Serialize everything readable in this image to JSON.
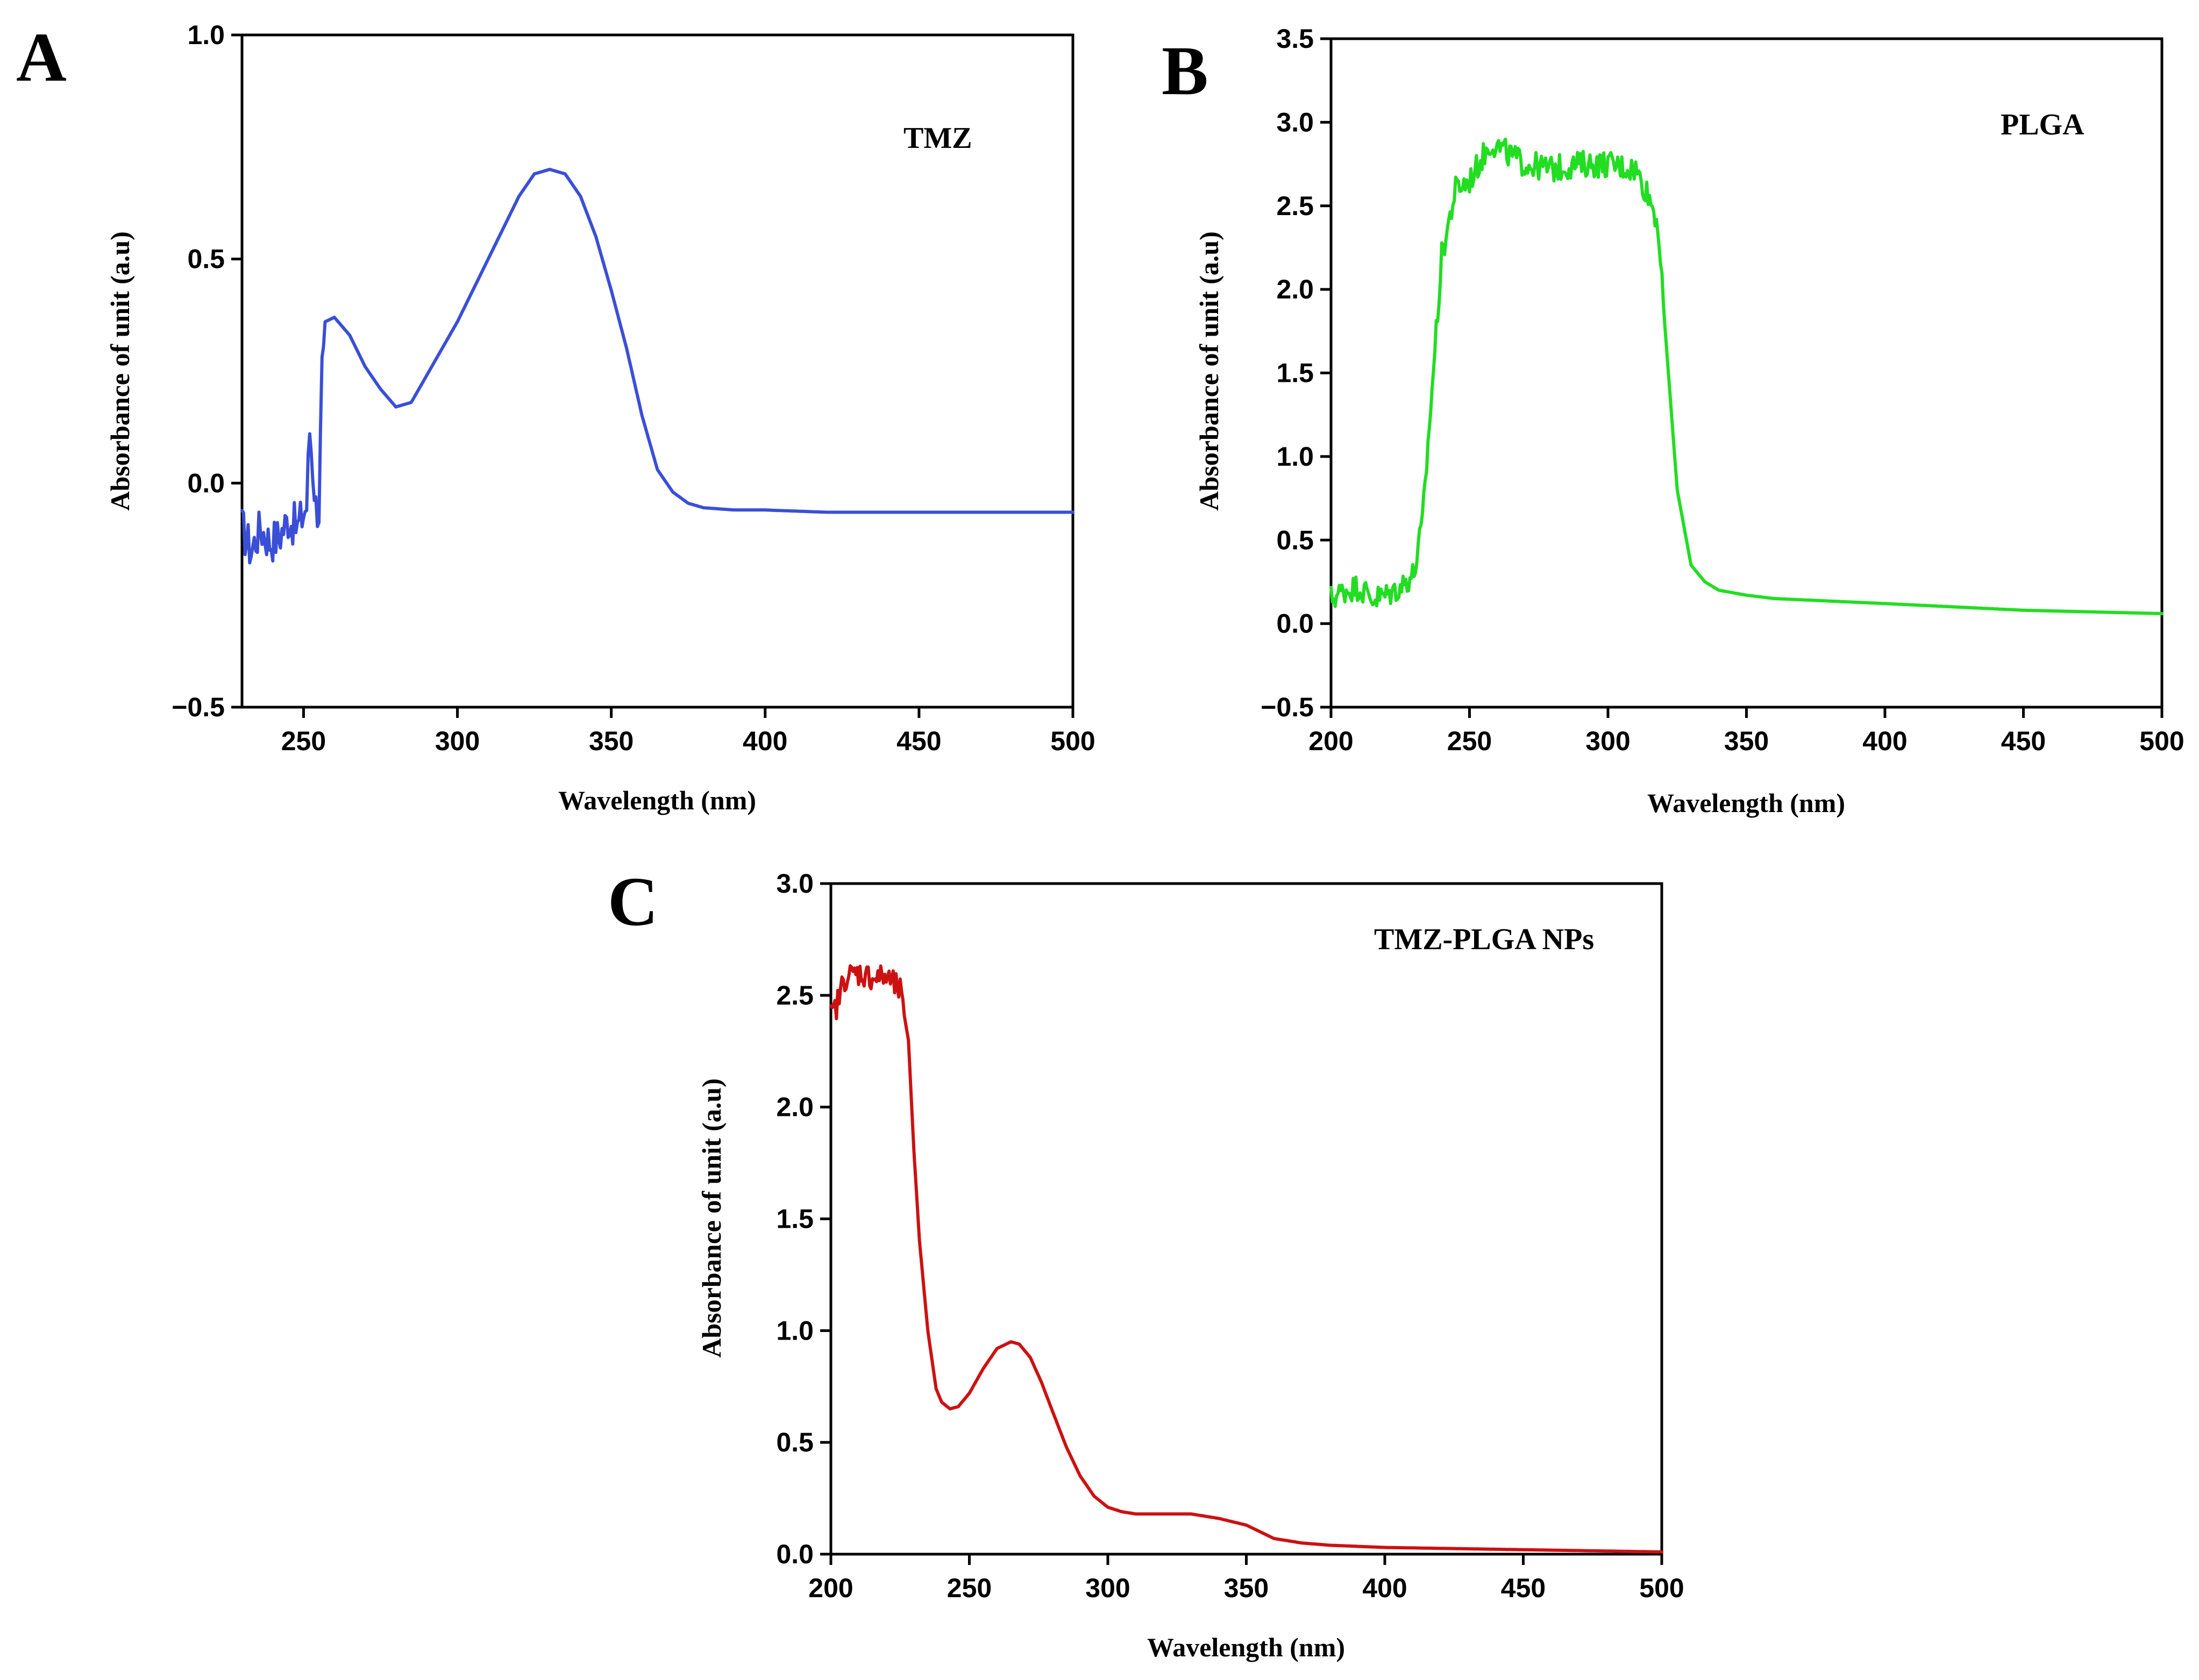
{
  "chart_data": [
    {
      "panel": "A",
      "type": "line",
      "series_name": "TMZ",
      "color": "#3a4fd6",
      "xlabel": "Wavelength (nm)",
      "ylabel": "Absorbance of unit (a.u)",
      "xlim": [
        230,
        500
      ],
      "ylim": [
        -0.5,
        1.0
      ],
      "xticks": [
        250,
        300,
        350,
        400,
        450,
        500
      ],
      "xtick_labels": [
        "250",
        "300",
        "350",
        "400",
        "450",
        "500"
      ],
      "yticks": [
        -0.5,
        0.0,
        0.5,
        1.0
      ],
      "ytick_labels": [
        "−0.5",
        "0.0",
        "0.5",
        "1.0"
      ],
      "noise_range": [
        230,
        256
      ],
      "noise_amplitude": 0.05,
      "x": [
        230,
        233,
        236,
        239,
        242,
        245,
        248,
        251,
        252,
        254,
        255,
        256,
        257,
        260,
        265,
        270,
        275,
        280,
        285,
        290,
        300,
        310,
        320,
        325,
        330,
        335,
        340,
        345,
        350,
        355,
        360,
        365,
        370,
        375,
        380,
        390,
        400,
        420,
        450,
        500
      ],
      "values": [
        -0.1,
        -0.15,
        -0.1,
        -0.13,
        -0.12,
        -0.08,
        -0.1,
        -0.05,
        0.12,
        -0.05,
        -0.06,
        0.25,
        0.36,
        0.37,
        0.33,
        0.26,
        0.21,
        0.17,
        0.18,
        0.24,
        0.36,
        0.5,
        0.64,
        0.69,
        0.7,
        0.69,
        0.64,
        0.55,
        0.43,
        0.3,
        0.15,
        0.03,
        -0.02,
        -0.045,
        -0.055,
        -0.06,
        -0.06,
        -0.065,
        -0.065,
        -0.065
      ]
    },
    {
      "panel": "B",
      "type": "line",
      "series_name": "PLGA",
      "color": "#22dd22",
      "xlabel": "Wavelength (nm)",
      "ylabel": "Absorbance of unit (a.u)",
      "xlim": [
        200,
        500
      ],
      "ylim": [
        -0.5,
        3.5
      ],
      "xticks": [
        200,
        250,
        300,
        350,
        400,
        450,
        500
      ],
      "xtick_labels": [
        "200",
        "250",
        "300",
        "350",
        "400",
        "450",
        "500"
      ],
      "yticks": [
        -0.5,
        0.0,
        0.5,
        1.0,
        1.5,
        2.0,
        2.5,
        3.0,
        3.5
      ],
      "ytick_labels": [
        "−0.5",
        "0.0",
        "0.5",
        "1.0",
        "1.5",
        "2.0",
        "2.5",
        "3.0",
        "3.5"
      ],
      "noise_range": [
        200,
        320
      ],
      "noise_amplitude": 0.08,
      "x": [
        200,
        205,
        210,
        215,
        220,
        225,
        230,
        233,
        236,
        240,
        245,
        250,
        255,
        258,
        265,
        270,
        280,
        290,
        300,
        310,
        315,
        318,
        320,
        325,
        330,
        335,
        340,
        350,
        360,
        400,
        450,
        500
      ],
      "values": [
        0.15,
        0.2,
        0.22,
        0.15,
        0.17,
        0.22,
        0.3,
        0.6,
        1.3,
        2.2,
        2.6,
        2.65,
        2.8,
        2.88,
        2.8,
        2.75,
        2.72,
        2.75,
        2.75,
        2.72,
        2.55,
        2.4,
        1.9,
        0.8,
        0.35,
        0.25,
        0.2,
        0.17,
        0.15,
        0.12,
        0.08,
        0.06
      ]
    },
    {
      "panel": "C",
      "type": "line",
      "series_name": "TMZ-PLGA NPs",
      "color": "#cc1111",
      "xlabel": "Wavelength (nm)",
      "ylabel": "Absorbance of unit (a.u)",
      "xlim": [
        200,
        500
      ],
      "ylim": [
        0.0,
        3.0
      ],
      "xticks": [
        200,
        250,
        300,
        350,
        400,
        450,
        500
      ],
      "xtick_labels": [
        "200",
        "250",
        "300",
        "350",
        "400",
        "450",
        "500"
      ],
      "yticks": [
        0.0,
        0.5,
        1.0,
        1.5,
        2.0,
        2.5,
        3.0
      ],
      "ytick_labels": [
        "0.0",
        "0.5",
        "1.0",
        "1.5",
        "2.0",
        "2.5",
        "3.0"
      ],
      "noise_range": [
        200,
        226
      ],
      "noise_amplitude": 0.06,
      "x": [
        200,
        202,
        205,
        210,
        215,
        220,
        225,
        228,
        230,
        232,
        235,
        238,
        240,
        243,
        246,
        250,
        255,
        260,
        265,
        268,
        272,
        276,
        280,
        285,
        290,
        295,
        300,
        305,
        310,
        320,
        330,
        340,
        350,
        355,
        360,
        370,
        380,
        400,
        450,
        500
      ],
      "values": [
        2.4,
        2.45,
        2.58,
        2.6,
        2.58,
        2.58,
        2.52,
        2.3,
        1.8,
        1.4,
        1.0,
        0.74,
        0.68,
        0.65,
        0.66,
        0.72,
        0.83,
        0.92,
        0.95,
        0.94,
        0.88,
        0.77,
        0.64,
        0.48,
        0.35,
        0.26,
        0.21,
        0.19,
        0.18,
        0.18,
        0.18,
        0.16,
        0.13,
        0.1,
        0.07,
        0.05,
        0.04,
        0.03,
        0.02,
        0.01
      ]
    }
  ]
}
